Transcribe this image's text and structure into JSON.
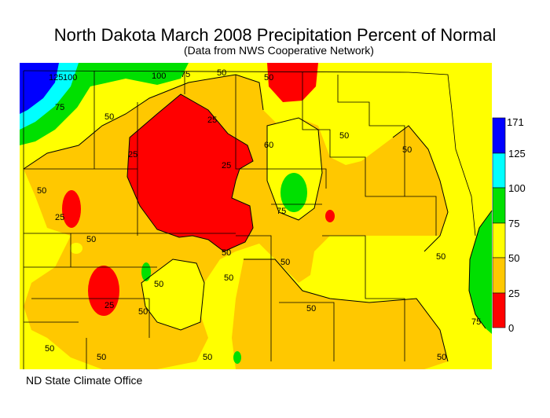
{
  "title": "North Dakota March 2008 Precipitation Percent of Normal",
  "subtitle": "(Data from NWS Cooperative Network)",
  "credit": "ND State Climate Office",
  "legend": {
    "ticks": [
      "171",
      "125",
      "100",
      "75",
      "50",
      "25",
      "0"
    ],
    "bands": [
      {
        "range": "125-171",
        "color": "#0000FF"
      },
      {
        "range": "100-125",
        "color": "#00FFFF"
      },
      {
        "range": "75-100",
        "color": "#00E000"
      },
      {
        "range": "50-75",
        "color": "#FFFF00"
      },
      {
        "range": "25-50",
        "color": "#FFC800"
      },
      {
        "range": "0-25",
        "color": "#FF0000"
      }
    ]
  },
  "contour_labels": [
    "125",
    "100",
    "75",
    "100",
    "75",
    "50",
    "50",
    "50",
    "25",
    "25",
    "50",
    "25",
    "60",
    "50",
    "50",
    "75",
    "25",
    "50",
    "50",
    "25",
    "50",
    "50",
    "50",
    "50",
    "50",
    "50",
    "50",
    "75",
    "50",
    "50",
    "50"
  ]
}
